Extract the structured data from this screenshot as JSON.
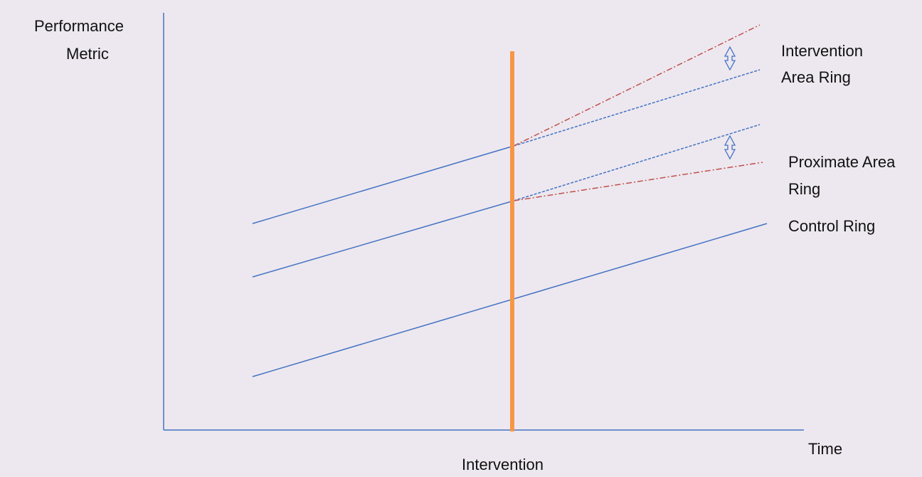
{
  "axes": {
    "y_label_line1": "Performance",
    "y_label_line2": "Metric",
    "x_label": "Time",
    "event_label": "Intervention"
  },
  "rings": {
    "intervention_line1": "Intervention",
    "intervention_line2": "Area Ring",
    "proximate_line1": "Proximate Area",
    "proximate_line2": "Ring",
    "control": "Control Ring"
  },
  "colors": {
    "background": "#ede8ef",
    "axis": "#4472c4",
    "trend": "#4472c4",
    "counterfactual": "#c0504d",
    "intervention_bar": "#f79646",
    "text": "#111111"
  }
}
